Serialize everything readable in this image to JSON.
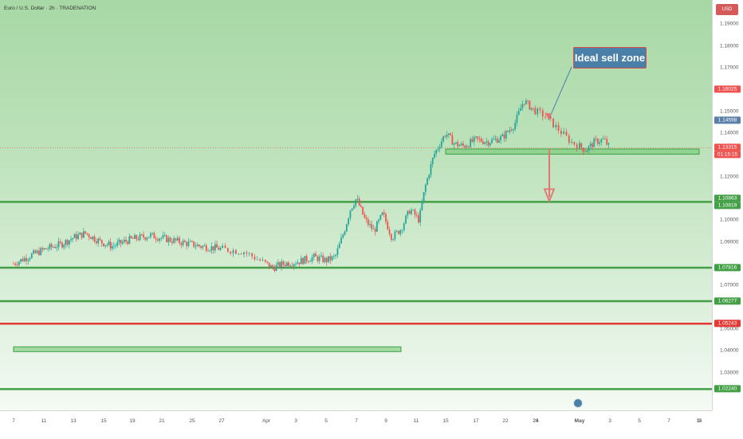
{
  "symbol_title": "Euro / U.S. Dollar · 2h · TRADENATION",
  "currency": "USD",
  "annotation": {
    "text": "Ideal sell zone"
  },
  "colors": {
    "bull": "#26a69a",
    "bear": "#ef5350",
    "support_line": "#43a047",
    "resistance_line": "#e53935",
    "callout_bg": "#4a7fa8",
    "callout_border": "#d84c4c",
    "short_risk": "#d7a08a",
    "short_reward": "#5ec4ae"
  },
  "icons": {
    "event_lightning": "lightning-icon",
    "event_flags": "flag-icon"
  },
  "chart_data": {
    "type": "candlestick",
    "instrument": "Euro / U.S. Dollar",
    "timeframe": "2h",
    "broker": "TRADENATION",
    "y_ticks": [
      "1.19000",
      "1.18000",
      "1.17000",
      "1.15000",
      "1.14000",
      "1.12000",
      "1.10000",
      "1.09000",
      "1.07000",
      "1.05000",
      "1.04000",
      "1.03000"
    ],
    "x_ticks": [
      "7",
      "11",
      "13",
      "15",
      "19",
      "21",
      "25",
      "27",
      "Apr",
      "3",
      "5",
      "7",
      "9",
      "11",
      "15",
      "17",
      "22",
      "24",
      "26",
      "May",
      "3",
      "5",
      "7",
      "9",
      "13"
    ],
    "ylim": [
      1.0163,
      1.1982
    ],
    "price_labels": [
      {
        "value": "1.16025",
        "color": "#ef5350",
        "role": "short target top"
      },
      {
        "value": "1.14598",
        "color": "#5a7fa8",
        "role": "entry"
      },
      {
        "value": "1.13315",
        "color": "#ef5350",
        "role": "last price"
      },
      {
        "value": "01:15:15",
        "color": "#ef5350",
        "role": "countdown"
      },
      {
        "value": "1.10863",
        "color": "#43a047",
        "role": "level"
      },
      {
        "value": "1.10819",
        "color": "#43a047",
        "role": "level"
      },
      {
        "value": "1.07816",
        "color": "#43a047",
        "role": "level"
      },
      {
        "value": "1.06277",
        "color": "#43a047",
        "role": "level"
      },
      {
        "value": "1.05243",
        "color": "#e53935",
        "role": "level"
      },
      {
        "value": "1.02240",
        "color": "#43a047",
        "role": "level"
      }
    ],
    "horizontal_levels": [
      {
        "price": 1.1084,
        "color": "green"
      },
      {
        "price": 1.07816,
        "color": "green"
      },
      {
        "price": 1.06277,
        "color": "green"
      },
      {
        "price": 1.05243,
        "color": "red"
      },
      {
        "price": 1.0224,
        "color": "green"
      }
    ],
    "zones": [
      {
        "price_low": 1.1303,
        "price_high": 1.1327,
        "x_start": 14.0,
        "x_end": 26.7
      },
      {
        "price_low": 1.0396,
        "price_high": 1.0418,
        "x_start": 0.0,
        "x_end": 12.5
      }
    ],
    "short_position": {
      "entry": 1.14598,
      "stop": 1.16025,
      "target": 1.1084,
      "x_start": 24.5,
      "x_end": 28.6
    },
    "projection_arrow": {
      "from": 1.1327,
      "to": 1.1084
    },
    "close_path": [
      [
        0.0,
        1.08
      ],
      [
        0.6,
        1.084
      ],
      [
        1.1,
        1.087
      ],
      [
        1.6,
        1.089
      ],
      [
        2.0,
        1.092
      ],
      [
        2.4,
        1.094
      ],
      [
        2.9,
        1.09
      ],
      [
        3.3,
        1.088
      ],
      [
        3.9,
        1.091
      ],
      [
        4.6,
        1.093
      ],
      [
        5.1,
        1.0915
      ],
      [
        5.6,
        1.09
      ],
      [
        6.3,
        1.088
      ],
      [
        6.9,
        1.087
      ],
      [
        7.5,
        1.0855
      ],
      [
        7.9,
        1.081
      ],
      [
        8.2,
        1.078
      ],
      [
        8.6,
        1.08
      ],
      [
        9.1,
        1.081
      ],
      [
        9.6,
        1.083
      ],
      [
        10.0,
        1.0815
      ],
      [
        10.3,
        1.083
      ],
      [
        10.6,
        1.095
      ],
      [
        10.8,
        1.105
      ],
      [
        11.0,
        1.11
      ],
      [
        11.3,
        1.1
      ],
      [
        11.6,
        1.095
      ],
      [
        11.9,
        1.103
      ],
      [
        12.2,
        1.092
      ],
      [
        12.5,
        1.096
      ],
      [
        12.8,
        1.105
      ],
      [
        13.1,
        1.1
      ],
      [
        13.3,
        1.115
      ],
      [
        13.6,
        1.13
      ],
      [
        13.8,
        1.135
      ],
      [
        14.0,
        1.14
      ],
      [
        14.3,
        1.135
      ],
      [
        14.6,
        1.134
      ],
      [
        15.0,
        1.137
      ],
      [
        15.4,
        1.136
      ],
      [
        15.9,
        1.138
      ],
      [
        16.3,
        1.144
      ],
      [
        16.6,
        1.155
      ],
      [
        16.9,
        1.151
      ],
      [
        17.2,
        1.148
      ],
      [
        17.5,
        1.142
      ],
      [
        17.8,
        1.136
      ],
      [
        18.2,
        1.132
      ],
      [
        18.5,
        1.136
      ],
      [
        18.8,
        1.137
      ],
      [
        19.0,
        1.1332
      ]
    ]
  }
}
